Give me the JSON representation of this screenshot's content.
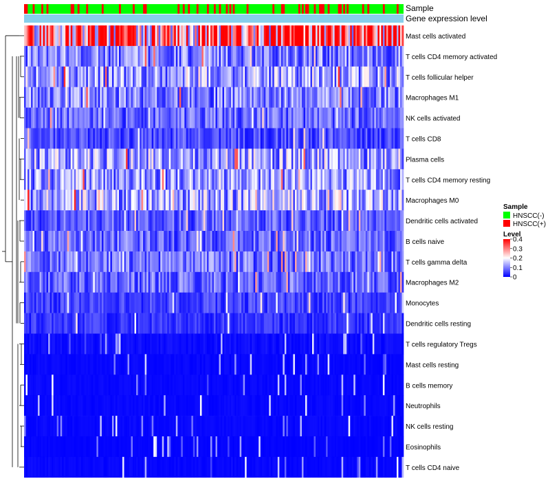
{
  "chart_data": {
    "type": "heatmap",
    "title": "",
    "annotation_rows": [
      "Sample",
      "Gene expression level"
    ],
    "row_labels": [
      "Mast cells activated",
      "T cells CD4 memory activated",
      "T cells follicular helper",
      "Macrophages M1",
      "NK cells activated",
      "T cells CD8",
      "Plasma cells",
      "T cells CD4 memory resting",
      "Macrophages M0",
      "Dendritic cells activated",
      "B cells naive",
      "T cells gamma delta",
      "Macrophages M2",
      "Monocytes",
      "Dendritic cells resting",
      "T cells regulatory  Tregs",
      "Mast cells resting",
      "B cells memory",
      "Neutrophils",
      "NK cells resting",
      "Eosinophils",
      "T cells CD4 naive"
    ],
    "row_mean_level": [
      0.34,
      0.1,
      0.12,
      0.1,
      0.08,
      0.06,
      0.13,
      0.12,
      0.13,
      0.07,
      0.08,
      0.09,
      0.08,
      0.05,
      0.04,
      0.02,
      0.01,
      0.01,
      0.01,
      0.01,
      0.005,
      0.01
    ],
    "n_samples": 220,
    "positive_fraction": 0.22,
    "color_scale": {
      "min": 0,
      "mid": 0.2,
      "max": 0.4,
      "low": "#0000ff",
      "mid_color": "#ffffff",
      "high": "#ff0000"
    },
    "legend": {
      "sample_title": "Sample",
      "sample_entries": [
        {
          "label": "HNSCC(-)",
          "color": "#00ff00"
        },
        {
          "label": "HNSCC(+)",
          "color": "#ff0000"
        }
      ],
      "level_title": "Level",
      "level_ticks": [
        "0.4",
        "0.3",
        "0.2",
        "0.1",
        "0"
      ],
      "level_tick_values": [
        0.4,
        0.3,
        0.2,
        0.1,
        0
      ]
    },
    "expression_bar_color": "#87ceeb"
  }
}
